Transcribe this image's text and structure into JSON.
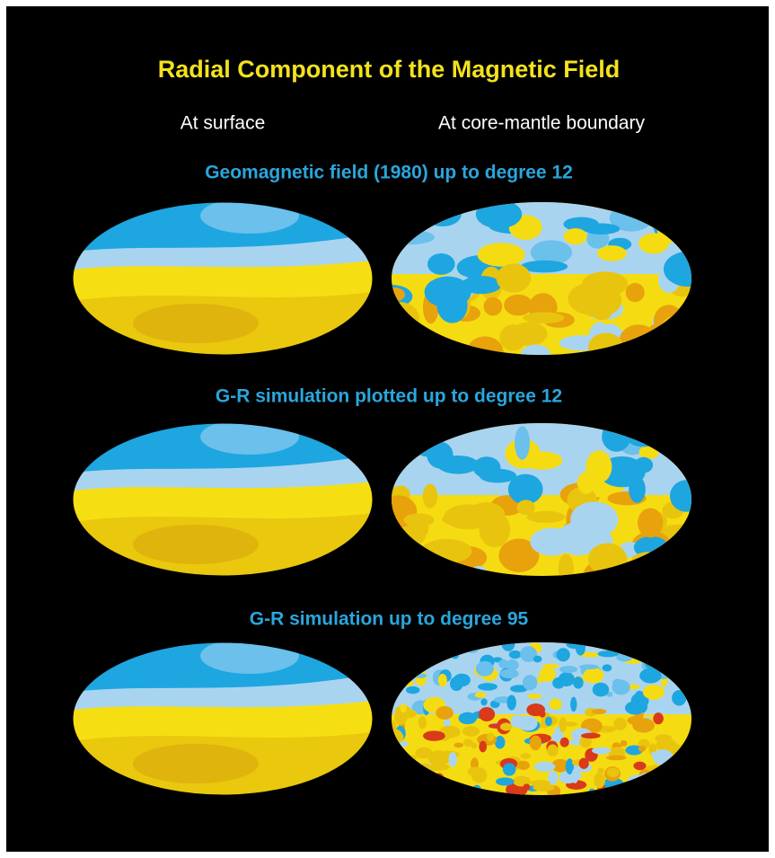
{
  "title": "Radial Component of the Magnetic Field",
  "column_headers": [
    "At surface",
    "At core-mantle boundary"
  ],
  "rows": [
    {
      "title": "Geomagnetic field (1980) up to degree 12"
    },
    {
      "title": "G-R simulation plotted up to degree 12"
    },
    {
      "title": "G-R simulation up to degree 95"
    }
  ]
}
